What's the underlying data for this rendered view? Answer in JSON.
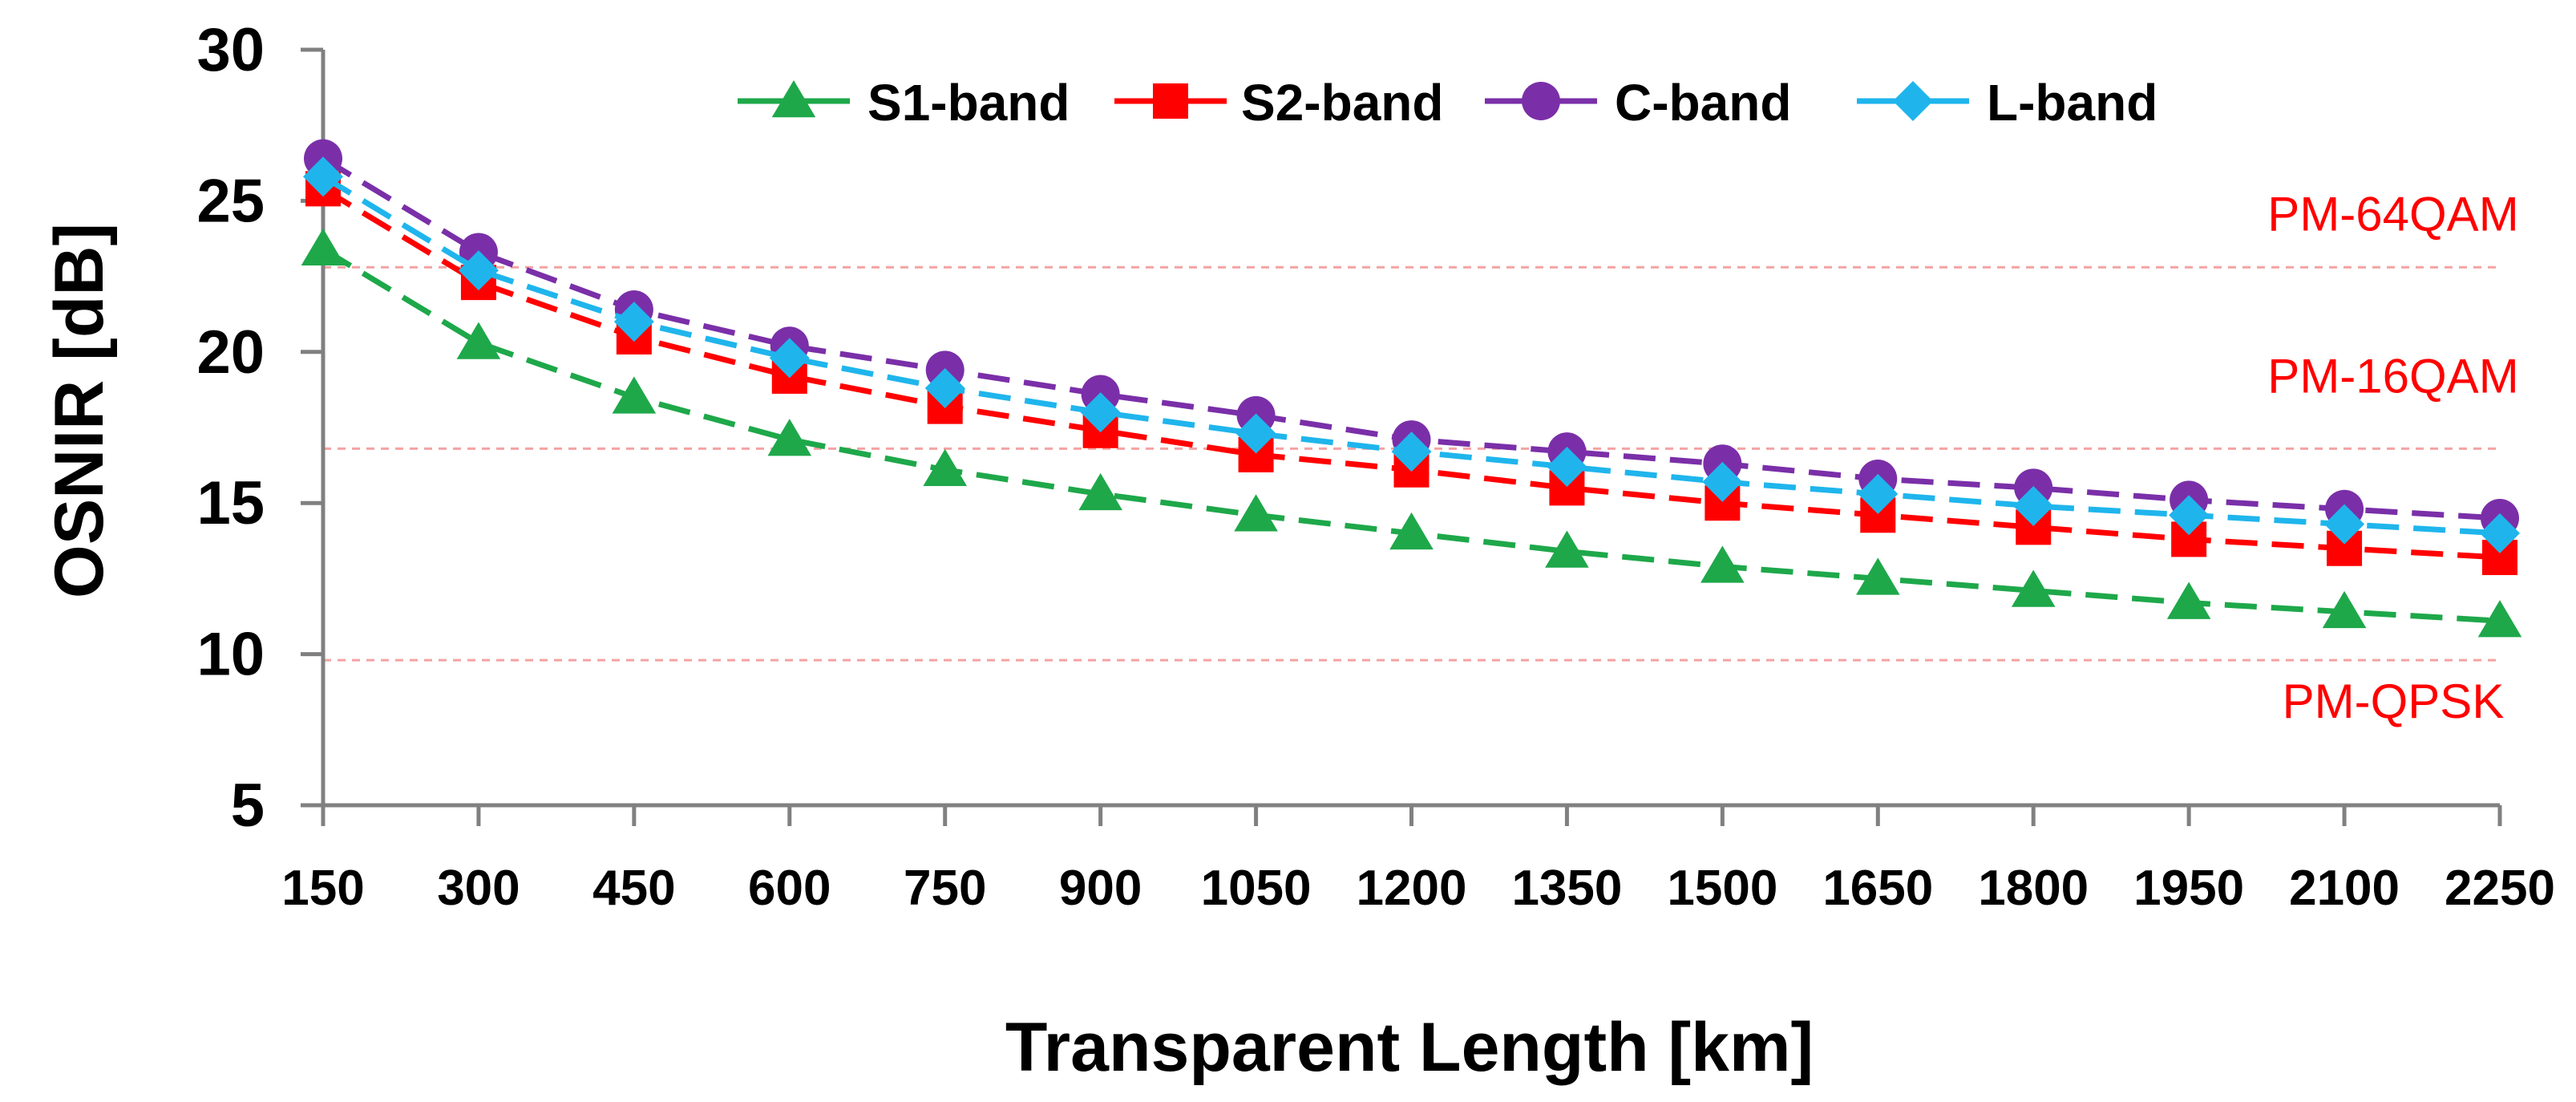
{
  "chart_data": {
    "type": "line",
    "title": "",
    "xlabel": "Transparent Length [km]",
    "ylabel": "OSNIR [dB]",
    "ylim": [
      5,
      30
    ],
    "yticks": [
      5,
      10,
      15,
      20,
      25,
      30
    ],
    "categories": [
      "150",
      "300",
      "450",
      "600",
      "750",
      "900",
      "1050",
      "1200",
      "1350",
      "1500",
      "1650",
      "1800",
      "1950",
      "2100",
      "2250"
    ],
    "series": [
      {
        "name": "S1-band",
        "color": "#1ea84a",
        "marker": "triangle",
        "values": [
          23.4,
          20.3,
          18.5,
          17.1,
          16.1,
          15.3,
          14.6,
          14.0,
          13.4,
          12.9,
          12.5,
          12.1,
          11.7,
          11.4,
          11.1
        ]
      },
      {
        "name": "S2-band",
        "color": "#ff0000",
        "marker": "square",
        "values": [
          25.4,
          22.3,
          20.5,
          19.2,
          18.2,
          17.4,
          16.6,
          16.1,
          15.5,
          15.0,
          14.6,
          14.2,
          13.8,
          13.5,
          13.2
        ]
      },
      {
        "name": "C-band",
        "color": "#7a2fa8",
        "marker": "circle",
        "values": [
          26.4,
          23.3,
          21.4,
          20.2,
          19.4,
          18.6,
          17.9,
          17.1,
          16.7,
          16.3,
          15.8,
          15.5,
          15.1,
          14.8,
          14.5
        ]
      },
      {
        "name": "L-band",
        "color": "#1fb5ec",
        "marker": "diamond",
        "values": [
          25.8,
          22.7,
          21.0,
          19.8,
          18.8,
          18.0,
          17.3,
          16.7,
          16.2,
          15.7,
          15.3,
          14.9,
          14.6,
          14.3,
          14.0
        ]
      }
    ],
    "thresholds": [
      {
        "label": "PM-64QAM",
        "value": 22.8
      },
      {
        "label": "PM-16QAM",
        "value": 16.8
      },
      {
        "label": "PM-QPSK",
        "value": 9.8
      }
    ],
    "threshold_color": "#ff0000",
    "axis_color": "#808080",
    "legend_position": "top",
    "grid": false
  }
}
